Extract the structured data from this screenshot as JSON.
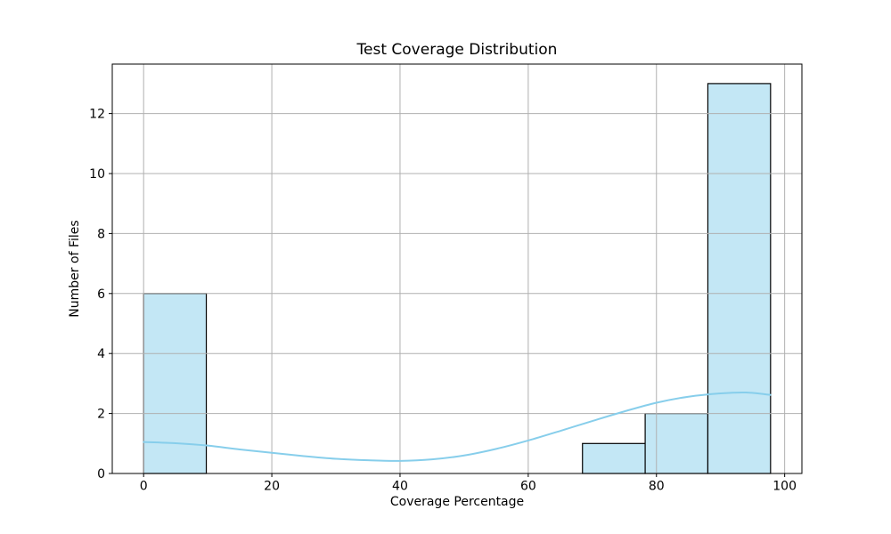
{
  "chart_data": {
    "type": "bar",
    "subtype": "histogram_with_kde_overlay",
    "title": "Test Coverage Distribution",
    "xlabel": "Coverage Percentage",
    "ylabel": "Number of Files",
    "xlim": [
      -4.89,
      102.69
    ],
    "ylim": [
      0,
      13.65
    ],
    "xticks": [
      0,
      20,
      40,
      60,
      80,
      100
    ],
    "yticks": [
      0,
      2,
      4,
      6,
      8,
      10,
      12
    ],
    "grid": true,
    "legend": false,
    "histogram": {
      "bin_edges": [
        0,
        9.78,
        19.56,
        29.34,
        39.12,
        48.9,
        58.68,
        68.46,
        78.24,
        88.02,
        97.8
      ],
      "counts": [
        6,
        0,
        0,
        0,
        0,
        0,
        0,
        1,
        2,
        13
      ]
    },
    "kde": {
      "x": [
        0,
        5,
        10,
        15,
        20,
        25,
        30,
        35,
        40,
        45,
        50,
        55,
        60,
        65,
        70,
        75,
        80,
        85,
        90,
        94,
        97.8
      ],
      "y": [
        1.05,
        1.01,
        0.93,
        0.8,
        0.69,
        0.58,
        0.49,
        0.44,
        0.42,
        0.47,
        0.6,
        0.82,
        1.1,
        1.42,
        1.75,
        2.07,
        2.36,
        2.56,
        2.67,
        2.7,
        2.62
      ]
    },
    "colors": {
      "bar_fill": "#c3e7f5",
      "bar_edge": "#000000",
      "kde_line": "#87ceeb",
      "grid": "#b0b0b0",
      "axis": "#000000",
      "text": "#000000",
      "background": "#ffffff"
    }
  }
}
